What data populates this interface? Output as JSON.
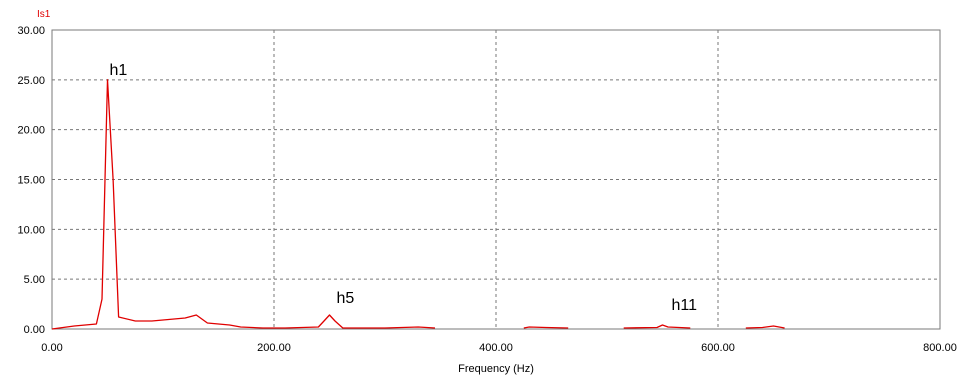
{
  "chart_data": {
    "type": "line",
    "series_label": "Is1",
    "xlabel": "Frequency (Hz)",
    "ylabel": "",
    "xlim": [
      0,
      800
    ],
    "ylim": [
      0,
      30
    ],
    "x_ticks": [
      "0.00",
      "200.00",
      "400.00",
      "600.00",
      "800.00"
    ],
    "y_ticks": [
      "0.00",
      "5.00",
      "10.00",
      "15.00",
      "20.00",
      "25.00",
      "30.00"
    ],
    "grid": "dashed",
    "series_color": "#e00000",
    "series": [
      {
        "name": "Is1",
        "points": [
          [
            0,
            0.0
          ],
          [
            20,
            0.3
          ],
          [
            40,
            0.5
          ],
          [
            45,
            3.0
          ],
          [
            50,
            25.0
          ],
          [
            55,
            15.0
          ],
          [
            60,
            1.2
          ],
          [
            75,
            0.8
          ],
          [
            90,
            0.8
          ],
          [
            110,
            1.0
          ],
          [
            120,
            1.1
          ],
          [
            130,
            1.4
          ],
          [
            140,
            0.6
          ],
          [
            160,
            0.4
          ],
          [
            170,
            0.2
          ],
          [
            190,
            0.1
          ],
          [
            210,
            0.1
          ],
          [
            240,
            0.2
          ],
          [
            245,
            0.8
          ],
          [
            250,
            1.4
          ],
          [
            255,
            0.8
          ],
          [
            262,
            0.1
          ],
          [
            280,
            0.1
          ],
          [
            300,
            0.1
          ],
          [
            330,
            0.2
          ],
          [
            345,
            0.1
          ],
          [
            380,
            null
          ],
          [
            425,
            0.1
          ],
          [
            430,
            0.2
          ],
          [
            445,
            0.15
          ],
          [
            465,
            0.1
          ],
          [
            500,
            null
          ],
          [
            515,
            0.1
          ],
          [
            545,
            0.15
          ],
          [
            550,
            0.4
          ],
          [
            555,
            0.2
          ],
          [
            575,
            0.1
          ],
          [
            600,
            null
          ],
          [
            625,
            0.1
          ],
          [
            640,
            0.15
          ],
          [
            650,
            0.3
          ],
          [
            660,
            0.1
          ]
        ]
      }
    ],
    "annotations": [
      {
        "text": "h1",
        "x": 50,
        "y": 25.0
      },
      {
        "text": "h5",
        "x": 250,
        "y": 1.4
      },
      {
        "text": "h11",
        "x": 550,
        "y": 0.4
      }
    ]
  }
}
